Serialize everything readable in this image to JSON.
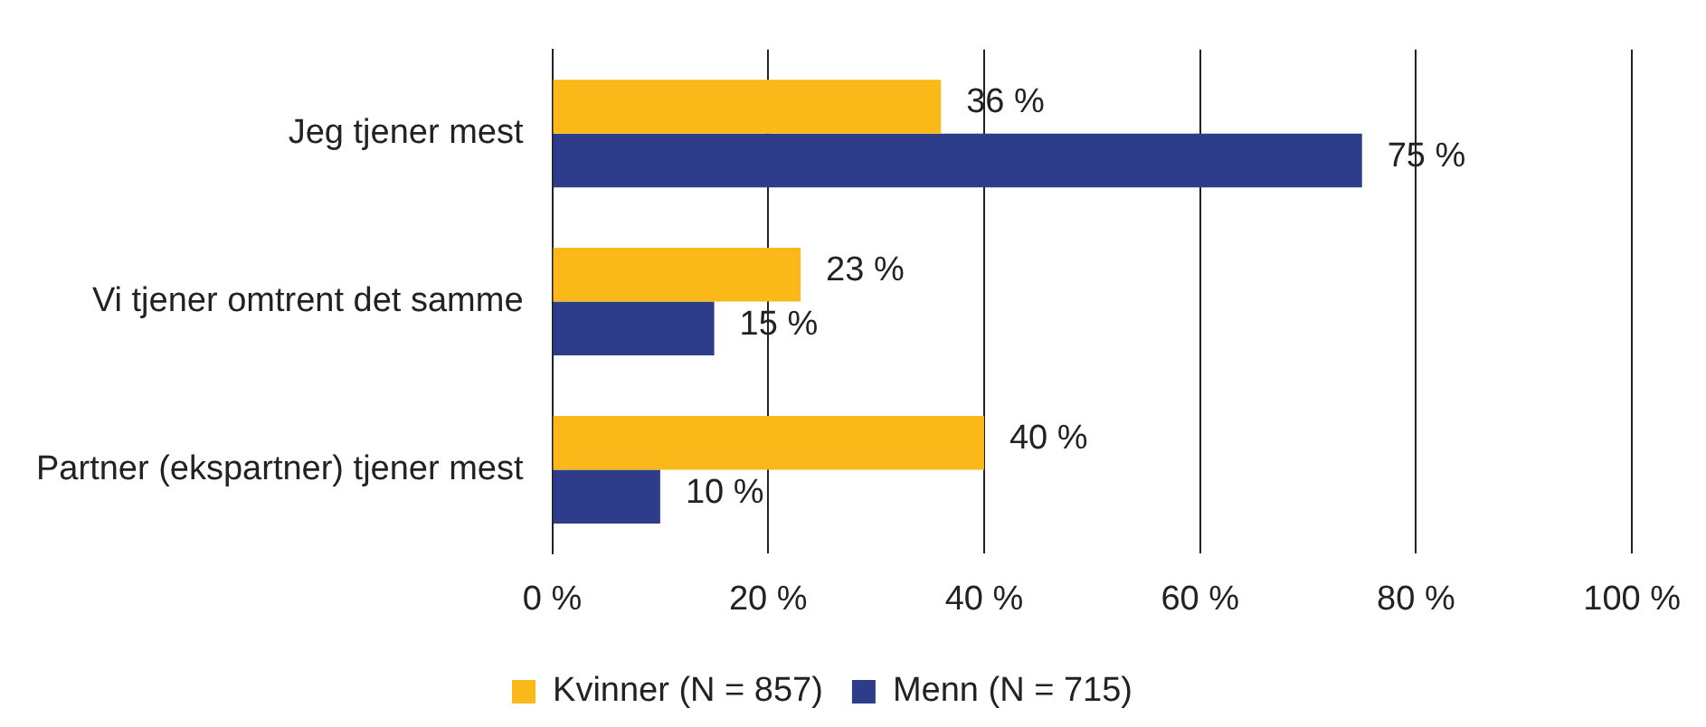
{
  "chart_data": {
    "type": "bar",
    "orientation": "horizontal",
    "categories": [
      "Jeg tjener mest",
      "Vi tjener omtrent det samme",
      "Partner (ekspartner) tjener mest"
    ],
    "series": [
      {
        "name": "Kvinner (N = 857)",
        "color": "#fbb819",
        "values": [
          36,
          23,
          40
        ],
        "value_labels": [
          "36 %",
          "23 %",
          "40 %"
        ]
      },
      {
        "name": "Menn (N = 715)",
        "color": "#2e3d8a",
        "values": [
          75,
          15,
          10
        ],
        "value_labels": [
          "75 %",
          "15 %",
          "10 %"
        ]
      }
    ],
    "xlim": [
      0,
      100
    ],
    "xticks": [
      {
        "value": 0,
        "label": "0 %"
      },
      {
        "value": 20,
        "label": "20 %"
      },
      {
        "value": 40,
        "label": "40 %"
      },
      {
        "value": 60,
        "label": "60 %"
      },
      {
        "value": 80,
        "label": "80 %"
      },
      {
        "value": 100,
        "label": "100 %"
      }
    ],
    "grid": "x",
    "legend": "bottom"
  }
}
